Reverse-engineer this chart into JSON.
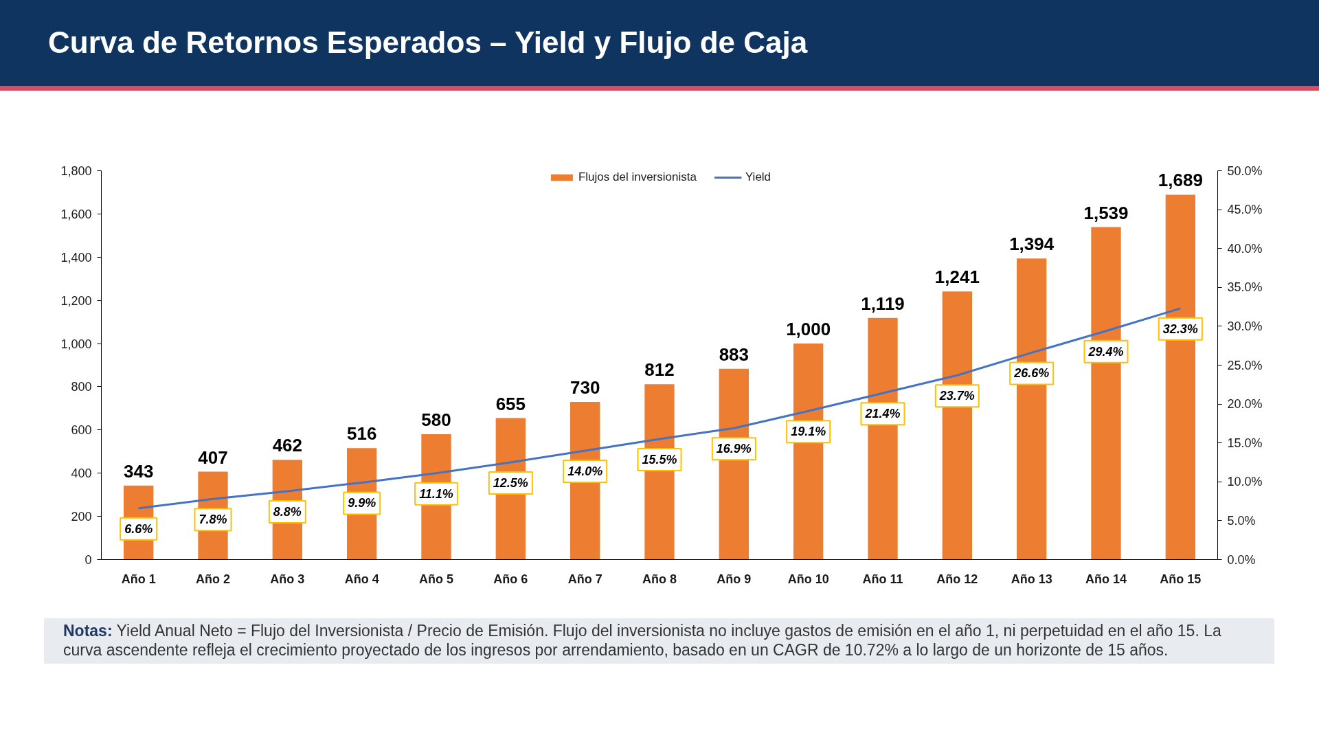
{
  "chart_data": {
    "type": "bar",
    "title": "Curva de Retornos Esperados – Yield y Flujo de Caja",
    "categories": [
      "Año 1",
      "Año 2",
      "Año 3",
      "Año 4",
      "Año 5",
      "Año 6",
      "Año 7",
      "Año 8",
      "Año 9",
      "Año 10",
      "Año 11",
      "Año 12",
      "Año 13",
      "Año 14",
      "Año 15"
    ],
    "series": [
      {
        "name": "Flujos del inversionista",
        "color": "#ed7d31",
        "values": [
          343,
          407,
          462,
          516,
          580,
          655,
          730,
          812,
          883,
          1000,
          1119,
          1241,
          1394,
          1539,
          1689
        ],
        "value_labels": [
          "343",
          "407",
          "462",
          "516",
          "580",
          "655",
          "730",
          "812",
          "883",
          "1,000",
          "1,119",
          "1,241",
          "1,394",
          "1,539",
          "1,689"
        ]
      },
      {
        "name": "Yield",
        "type": "line",
        "axis": "y2",
        "color": "#4472c4",
        "values": [
          6.6,
          7.8,
          8.8,
          9.9,
          11.1,
          12.5,
          14.0,
          15.5,
          16.9,
          19.1,
          21.4,
          23.7,
          26.6,
          29.4,
          32.3
        ],
        "value_labels": [
          "6.6%",
          "7.8%",
          "8.8%",
          "9.9%",
          "11.1%",
          "12.5%",
          "14.0%",
          "15.5%",
          "16.9%",
          "19.1%",
          "21.4%",
          "23.7%",
          "26.6%",
          "29.4%",
          "32.3%"
        ]
      }
    ],
    "ylim": [
      0,
      1800
    ],
    "yticks": [
      0,
      200,
      400,
      600,
      800,
      {
        "value": 1000,
        "label": "1,000"
      },
      {
        "value": 1200,
        "label": "1,200"
      },
      {
        "value": 1400,
        "label": "1,400"
      },
      {
        "value": 1600,
        "label": "1,600"
      },
      {
        "value": 1800,
        "label": "1,800"
      }
    ],
    "y2lim": [
      0,
      50
    ],
    "y2ticks": [
      {
        "value": 0,
        "label": "0.0%"
      },
      {
        "value": 5,
        "label": "5.0%"
      },
      {
        "value": 10,
        "label": "10.0%"
      },
      {
        "value": 15,
        "label": "15.0%"
      },
      {
        "value": 20,
        "label": "20.0%"
      },
      {
        "value": 25,
        "label": "25.0%"
      },
      {
        "value": 30,
        "label": "30.0%"
      },
      {
        "value": 35,
        "label": "35.0%"
      },
      {
        "value": 40,
        "label": "40.0%"
      },
      {
        "value": 45,
        "label": "45.0%"
      },
      {
        "value": 50,
        "label": "50.0%"
      }
    ],
    "legend": "top",
    "grid": false,
    "annotations": [
      "Notas: Yield Anual Neto = Flujo del Inversionista / Precio de Emisión. Flujo del inversionista no incluye gastos de emisión en el año 1, ni perpetuidad en el año 15. La curva ascendente refleja el crecimiento proyectado de los ingresos por arrendamiento, basado en un CAGR de 10.72% a lo largo de un horizonte de 15 años."
    ]
  }
}
